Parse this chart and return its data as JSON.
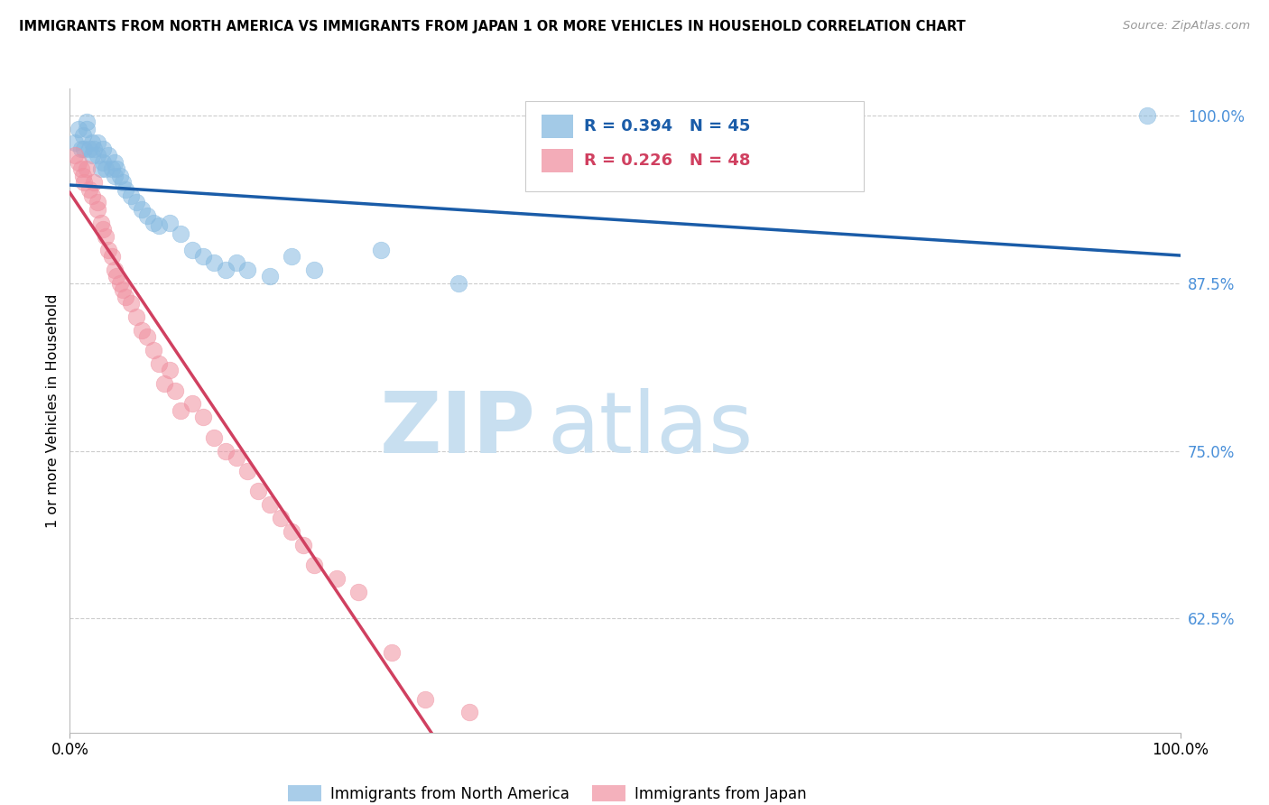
{
  "title": "IMMIGRANTS FROM NORTH AMERICA VS IMMIGRANTS FROM JAPAN 1 OR MORE VEHICLES IN HOUSEHOLD CORRELATION CHART",
  "source": "Source: ZipAtlas.com",
  "ylabel": "1 or more Vehicles in Household",
  "r_na": 0.394,
  "n_na": 45,
  "r_jp": 0.226,
  "n_jp": 48,
  "color_na": "#85b9e0",
  "color_jp": "#f090a0",
  "line_color_na": "#1a5ca8",
  "line_color_jp": "#d04060",
  "watermark_zip": "ZIP",
  "watermark_atlas": "atlas",
  "watermark_color": "#c8dff0",
  "xlim": [
    0.0,
    1.0
  ],
  "ylim": [
    0.54,
    1.02
  ],
  "yticks": [
    0.625,
    0.75,
    0.875,
    1.0
  ],
  "ytick_labels": [
    "62.5%",
    "75.0%",
    "87.5%",
    "100.0%"
  ],
  "legend_label_na": "Immigrants from North America",
  "legend_label_jp": "Immigrants from Japan",
  "na_x": [
    0.005,
    0.008,
    0.01,
    0.012,
    0.013,
    0.015,
    0.015,
    0.018,
    0.02,
    0.02,
    0.022,
    0.025,
    0.025,
    0.028,
    0.03,
    0.03,
    0.032,
    0.035,
    0.038,
    0.04,
    0.04,
    0.042,
    0.045,
    0.048,
    0.05,
    0.055,
    0.06,
    0.065,
    0.07,
    0.075,
    0.08,
    0.09,
    0.1,
    0.11,
    0.12,
    0.13,
    0.14,
    0.15,
    0.16,
    0.18,
    0.2,
    0.22,
    0.28,
    0.35,
    0.97
  ],
  "na_y": [
    0.98,
    0.99,
    0.975,
    0.985,
    0.975,
    0.99,
    0.995,
    0.975,
    0.98,
    0.97,
    0.975,
    0.98,
    0.97,
    0.96,
    0.965,
    0.975,
    0.96,
    0.97,
    0.96,
    0.955,
    0.965,
    0.96,
    0.955,
    0.95,
    0.945,
    0.94,
    0.935,
    0.93,
    0.925,
    0.92,
    0.918,
    0.92,
    0.912,
    0.9,
    0.895,
    0.89,
    0.885,
    0.89,
    0.885,
    0.88,
    0.895,
    0.885,
    0.9,
    0.875,
    1.0
  ],
  "jp_x": [
    0.005,
    0.008,
    0.01,
    0.012,
    0.013,
    0.015,
    0.018,
    0.02,
    0.022,
    0.025,
    0.025,
    0.028,
    0.03,
    0.032,
    0.035,
    0.038,
    0.04,
    0.042,
    0.045,
    0.048,
    0.05,
    0.055,
    0.06,
    0.065,
    0.07,
    0.075,
    0.08,
    0.085,
    0.09,
    0.095,
    0.1,
    0.11,
    0.12,
    0.13,
    0.14,
    0.15,
    0.16,
    0.17,
    0.18,
    0.19,
    0.2,
    0.21,
    0.22,
    0.24,
    0.26,
    0.29,
    0.32,
    0.36
  ],
  "jp_y": [
    0.97,
    0.965,
    0.96,
    0.955,
    0.95,
    0.96,
    0.945,
    0.94,
    0.95,
    0.935,
    0.93,
    0.92,
    0.915,
    0.91,
    0.9,
    0.895,
    0.885,
    0.88,
    0.875,
    0.87,
    0.865,
    0.86,
    0.85,
    0.84,
    0.835,
    0.825,
    0.815,
    0.8,
    0.81,
    0.795,
    0.78,
    0.785,
    0.775,
    0.76,
    0.75,
    0.745,
    0.735,
    0.72,
    0.71,
    0.7,
    0.69,
    0.68,
    0.665,
    0.655,
    0.645,
    0.6,
    0.565,
    0.555
  ]
}
